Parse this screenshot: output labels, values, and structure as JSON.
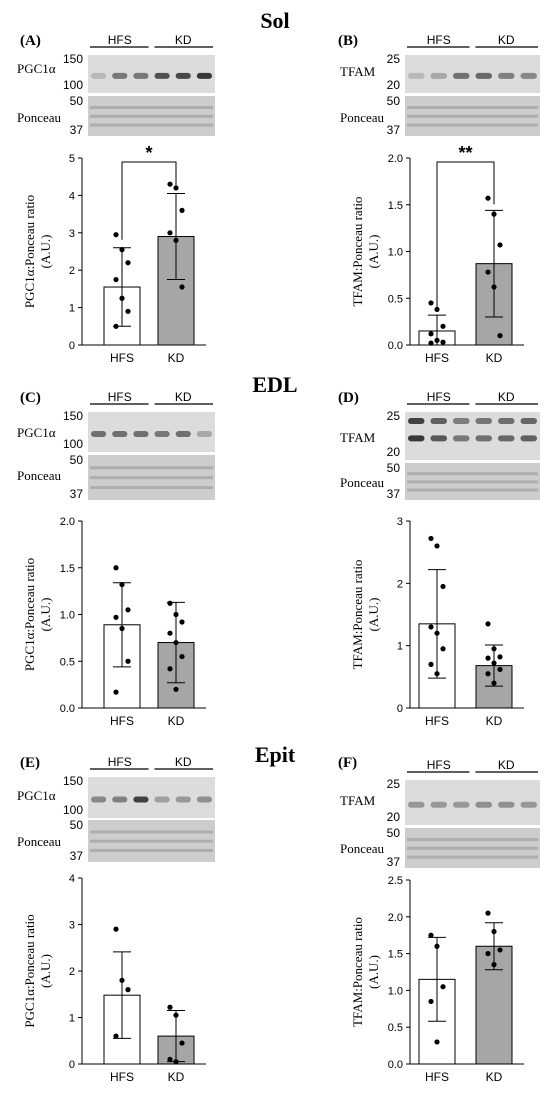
{
  "sections": [
    {
      "title": "Sol"
    },
    {
      "title": "EDL"
    },
    {
      "title": "Epit"
    }
  ],
  "panels": [
    {
      "label": "(A)",
      "protein": "PGC1α",
      "group_labels": [
        "HFS",
        "KD"
      ],
      "protein_mw": [
        "150",
        "100"
      ],
      "ponceau_label": "Ponceau",
      "ponceau_mw": [
        "50",
        "37"
      ]
    },
    {
      "label": "(B)",
      "protein": "TFAM",
      "group_labels": [
        "HFS",
        "KD"
      ],
      "protein_mw": [
        "25",
        "20"
      ],
      "ponceau_label": "Ponceau",
      "ponceau_mw": [
        "50",
        "37"
      ]
    },
    {
      "label": "(C)",
      "protein": "PGC1α",
      "group_labels": [
        "HFS",
        "KD"
      ],
      "protein_mw": [
        "150",
        "100"
      ],
      "ponceau_label": "Ponceau",
      "ponceau_mw": [
        "50",
        "37"
      ]
    },
    {
      "label": "(D)",
      "protein": "TFAM",
      "group_labels": [
        "HFS",
        "KD"
      ],
      "protein_mw": [
        "25",
        "20"
      ],
      "ponceau_label": "Ponceau",
      "ponceau_mw": [
        "50",
        "37"
      ]
    },
    {
      "label": "(E)",
      "protein": "PGC1α",
      "group_labels": [
        "HFS",
        "KD"
      ],
      "protein_mw": [
        "150",
        "100"
      ],
      "ponceau_label": "Ponceau",
      "ponceau_mw": [
        "50",
        "37"
      ]
    },
    {
      "label": "(F)",
      "protein": "TFAM",
      "group_labels": [
        "HFS",
        "KD"
      ],
      "protein_mw": [
        "25",
        "20"
      ],
      "ponceau_label": "Ponceau",
      "ponceau_mw": [
        "50",
        "37"
      ]
    }
  ],
  "colors": {
    "hfs_bar": "#ffffff",
    "kd_bar": "#a6a6a6",
    "stroke": "#000000"
  },
  "chart_data": [
    {
      "type": "bar",
      "panel": "A",
      "ylabel": [
        "PGC1α:Ponceau ratio",
        "(A.U.)"
      ],
      "categories": [
        "HFS",
        "KD"
      ],
      "values": [
        1.55,
        2.9
      ],
      "sd": [
        1.05,
        1.15
      ],
      "ylim": [
        0,
        5
      ],
      "yticks": [
        0,
        1,
        2,
        3,
        4,
        5
      ],
      "points": [
        [
          2.95,
          2.55,
          2.2,
          1.75,
          1.25,
          0.9,
          0.5
        ],
        [
          4.3,
          4.2,
          3.6,
          3.0,
          2.8,
          1.55
        ]
      ],
      "significance": "*"
    },
    {
      "type": "bar",
      "panel": "B",
      "ylabel": [
        "TFAM:Ponceau ratio",
        "(A.U.)"
      ],
      "categories": [
        "HFS",
        "KD"
      ],
      "values": [
        0.15,
        0.87
      ],
      "sd": [
        0.17,
        0.57
      ],
      "ylim": [
        0,
        2.0
      ],
      "yticks": [
        "0.0",
        "0.5",
        "1.0",
        "1.5",
        "2.0"
      ],
      "points": [
        [
          0.45,
          0.38,
          0.2,
          0.12,
          0.05,
          0.03,
          0.02
        ],
        [
          1.57,
          1.4,
          1.07,
          0.78,
          0.62,
          0.1
        ]
      ],
      "significance": "**"
    },
    {
      "type": "bar",
      "panel": "C",
      "ylabel": [
        "PGC1α:Ponceau ratio",
        "(A.U.)"
      ],
      "categories": [
        "HFS",
        "KD"
      ],
      "values": [
        0.89,
        0.7
      ],
      "sd": [
        0.45,
        0.43
      ],
      "ylim": [
        0,
        2.0
      ],
      "yticks": [
        "0.0",
        "0.5",
        "1.0",
        "1.5",
        "2.0"
      ],
      "points": [
        [
          1.5,
          1.32,
          1.05,
          0.97,
          0.85,
          0.5,
          0.17
        ],
        [
          1.12,
          1.0,
          0.92,
          0.8,
          0.7,
          0.55,
          0.42,
          0.2
        ]
      ],
      "significance": ""
    },
    {
      "type": "bar",
      "panel": "D",
      "ylabel": [
        "TFAM:Ponceau ratio",
        "(A.U.)"
      ],
      "categories": [
        "HFS",
        "KD"
      ],
      "values": [
        1.35,
        0.68
      ],
      "sd": [
        0.87,
        0.33
      ],
      "ylim": [
        0,
        3
      ],
      "yticks": [
        0,
        1,
        2,
        3
      ],
      "points": [
        [
          2.72,
          2.6,
          1.95,
          1.3,
          1.2,
          0.95,
          0.7,
          0.55
        ],
        [
          1.35,
          0.95,
          0.82,
          0.8,
          0.72,
          0.62,
          0.55,
          0.4
        ]
      ],
      "significance": ""
    },
    {
      "type": "bar",
      "panel": "E",
      "ylabel": [
        "PGC1α:Ponceau ratio",
        "(A.U.)"
      ],
      "categories": [
        "HFS",
        "KD"
      ],
      "values": [
        1.48,
        0.6
      ],
      "sd": [
        0.93,
        0.55
      ],
      "ylim": [
        0,
        4
      ],
      "yticks": [
        0,
        1,
        2,
        3,
        4
      ],
      "points": [
        [
          2.9,
          1.8,
          1.6,
          0.6
        ],
        [
          1.22,
          1.05,
          0.45,
          0.1,
          0.05
        ]
      ],
      "significance": ""
    },
    {
      "type": "bar",
      "panel": "F",
      "ylabel": [
        "TFAM:Ponceau ratio",
        "(A.U.)"
      ],
      "categories": [
        "HFS",
        "KD"
      ],
      "values": [
        1.15,
        1.6
      ],
      "sd": [
        0.57,
        0.32
      ],
      "ylim": [
        0,
        2.5
      ],
      "yticks": [
        "0.0",
        "0.5",
        "1.0",
        "1.5",
        "2.0",
        "2.5"
      ],
      "points": [
        [
          1.75,
          1.6,
          1.05,
          0.85,
          0.3
        ],
        [
          2.05,
          1.8,
          1.55,
          1.5,
          1.35
        ]
      ],
      "significance": ""
    }
  ]
}
